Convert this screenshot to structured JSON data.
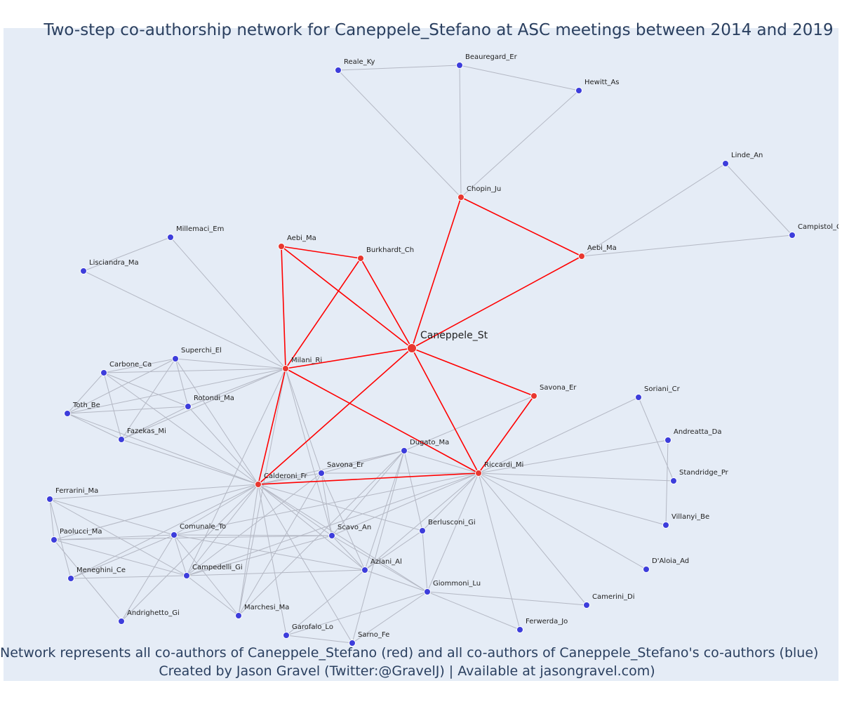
{
  "title": "Two-step co-authorship network for Caneppele_Stefano at ASC meetings between 2014 and 2019",
  "footer": {
    "line1": "Network represents all co-authors of Caneppele_Stefano (red) and all co-authors of Caneppele_Stefano's co-authors (blue)",
    "line2": "Created by Jason Gravel (Twitter:@GravelJ) | Available at jasongravel.com)"
  },
  "colors": {
    "background": "#e5ecf6",
    "red_node": "#e8372f",
    "blue_node": "#3d3ddb",
    "red_edge": "#ff0000",
    "grey_edge": "#b4b8c4",
    "text": "#2a3f5f"
  },
  "nodes": [
    {
      "id": "center",
      "label": "Caneppele_St",
      "group": "center"
    },
    {
      "id": "chopin",
      "label": "Chopin_Ju",
      "group": "red"
    },
    {
      "id": "aebi2",
      "label": "Aebi_Ma",
      "group": "red"
    },
    {
      "id": "aebi1",
      "label": "Aebi_Ma",
      "group": "red"
    },
    {
      "id": "burkhardt",
      "label": "Burkhardt_Ch",
      "group": "red"
    },
    {
      "id": "milani",
      "label": "Milani_Ri",
      "group": "red"
    },
    {
      "id": "savona_r",
      "label": "Savona_Er",
      "group": "red"
    },
    {
      "id": "calderoni",
      "label": "Calderoni_Fr",
      "group": "red"
    },
    {
      "id": "riccardi",
      "label": "Riccardi_Mi",
      "group": "red"
    },
    {
      "id": "reale",
      "label": "Reale_Ky",
      "group": "blue"
    },
    {
      "id": "beauregard",
      "label": "Beauregard_Er",
      "group": "blue"
    },
    {
      "id": "hewitt",
      "label": "Hewitt_As",
      "group": "blue"
    },
    {
      "id": "linde",
      "label": "Linde_An",
      "group": "blue"
    },
    {
      "id": "campistol",
      "label": "Campistol_Cl",
      "group": "blue"
    },
    {
      "id": "millemaci",
      "label": "Millemaci_Em",
      "group": "blue"
    },
    {
      "id": "lisciandra",
      "label": "Lisciandra_Ma",
      "group": "blue"
    },
    {
      "id": "superchi",
      "label": "Superchi_El",
      "group": "blue"
    },
    {
      "id": "carbone",
      "label": "Carbone_Ca",
      "group": "blue"
    },
    {
      "id": "rotondi",
      "label": "Rotondi_Ma",
      "group": "blue"
    },
    {
      "id": "toth",
      "label": "Toth_Be",
      "group": "blue"
    },
    {
      "id": "fazekas",
      "label": "Fazekas_Mi",
      "group": "blue"
    },
    {
      "id": "soriani",
      "label": "Soriani_Cr",
      "group": "blue"
    },
    {
      "id": "andreatta",
      "label": "Andreatta_Da",
      "group": "blue"
    },
    {
      "id": "dugato",
      "label": "Dugato_Ma",
      "group": "blue"
    },
    {
      "id": "savona_b",
      "label": "Savona_Er",
      "group": "blue"
    },
    {
      "id": "standridge",
      "label": "Standridge_Pr",
      "group": "blue"
    },
    {
      "id": "ferrarini",
      "label": "Ferrarini_Ma",
      "group": "blue"
    },
    {
      "id": "villanyi",
      "label": "Villanyi_Be",
      "group": "blue"
    },
    {
      "id": "comunale",
      "label": "Comunale_To",
      "group": "blue"
    },
    {
      "id": "scavo",
      "label": "Scavo_An",
      "group": "blue"
    },
    {
      "id": "berlusconi",
      "label": "Berlusconi_Gi",
      "group": "blue"
    },
    {
      "id": "paolucci",
      "label": "Paolucci_Ma",
      "group": "blue"
    },
    {
      "id": "daloia",
      "label": "D'Aloia_Ad",
      "group": "blue"
    },
    {
      "id": "aziani",
      "label": "Aziani_Al",
      "group": "blue"
    },
    {
      "id": "meneghini",
      "label": "Meneghini_Ce",
      "group": "blue"
    },
    {
      "id": "campedelli",
      "label": "Campedelli_Gi",
      "group": "blue"
    },
    {
      "id": "giommoni",
      "label": "Giommoni_Lu",
      "group": "blue"
    },
    {
      "id": "camerini",
      "label": "Camerini_Di",
      "group": "blue"
    },
    {
      "id": "marchesi",
      "label": "Marchesi_Ma",
      "group": "blue"
    },
    {
      "id": "andrighetto",
      "label": "Andrighetto_Gi",
      "group": "blue"
    },
    {
      "id": "ferwerda",
      "label": "Ferwerda_Jo",
      "group": "blue"
    },
    {
      "id": "garofalo",
      "label": "Garofalo_Lo",
      "group": "blue"
    },
    {
      "id": "sarno",
      "label": "Sarno_Fe",
      "group": "blue"
    }
  ],
  "edges": [
    [
      "center",
      "chopin",
      "red"
    ],
    [
      "center",
      "aebi2",
      "red"
    ],
    [
      "center",
      "aebi1",
      "red"
    ],
    [
      "center",
      "burkhardt",
      "red"
    ],
    [
      "center",
      "milani",
      "red"
    ],
    [
      "center",
      "savona_r",
      "red"
    ],
    [
      "center",
      "calderoni",
      "red"
    ],
    [
      "center",
      "riccardi",
      "red"
    ],
    [
      "chopin",
      "aebi2",
      "red"
    ],
    [
      "aebi1",
      "burkhardt",
      "red"
    ],
    [
      "aebi1",
      "milani",
      "red"
    ],
    [
      "burkhardt",
      "milani",
      "red"
    ],
    [
      "milani",
      "calderoni",
      "red"
    ],
    [
      "milani",
      "riccardi",
      "red"
    ],
    [
      "calderoni",
      "riccardi",
      "red"
    ],
    [
      "savona_r",
      "riccardi",
      "red"
    ],
    [
      "reale",
      "beauregard",
      "grey"
    ],
    [
      "reale",
      "chopin",
      "grey"
    ],
    [
      "beauregard",
      "hewitt",
      "grey"
    ],
    [
      "beauregard",
      "chopin",
      "grey"
    ],
    [
      "hewitt",
      "chopin",
      "grey"
    ],
    [
      "linde",
      "aebi2",
      "grey"
    ],
    [
      "linde",
      "campistol",
      "grey"
    ],
    [
      "campistol",
      "aebi2",
      "grey"
    ],
    [
      "millemaci",
      "lisciandra",
      "grey"
    ],
    [
      "millemaci",
      "milani",
      "grey"
    ],
    [
      "lisciandra",
      "milani",
      "grey"
    ],
    [
      "milani",
      "superchi",
      "grey"
    ],
    [
      "milani",
      "carbone",
      "grey"
    ],
    [
      "milani",
      "rotondi",
      "grey"
    ],
    [
      "milani",
      "toth",
      "grey"
    ],
    [
      "milani",
      "fazekas",
      "grey"
    ],
    [
      "milani",
      "savona_b",
      "grey"
    ],
    [
      "milani",
      "scavo",
      "grey"
    ],
    [
      "milani",
      "marchesi",
      "grey"
    ],
    [
      "milani",
      "campedelli",
      "grey"
    ],
    [
      "superchi",
      "carbone",
      "grey"
    ],
    [
      "superchi",
      "rotondi",
      "grey"
    ],
    [
      "superchi",
      "toth",
      "grey"
    ],
    [
      "superchi",
      "fazekas",
      "grey"
    ],
    [
      "superchi",
      "calderoni",
      "grey"
    ],
    [
      "carbone",
      "toth",
      "grey"
    ],
    [
      "carbone",
      "rotondi",
      "grey"
    ],
    [
      "carbone",
      "fazekas",
      "grey"
    ],
    [
      "carbone",
      "calderoni",
      "grey"
    ],
    [
      "toth",
      "rotondi",
      "grey"
    ],
    [
      "toth",
      "fazekas",
      "grey"
    ],
    [
      "toth",
      "calderoni",
      "grey"
    ],
    [
      "rotondi",
      "fazekas",
      "grey"
    ],
    [
      "rotondi",
      "calderoni",
      "grey"
    ],
    [
      "fazekas",
      "calderoni",
      "grey"
    ],
    [
      "savona_r",
      "dugato",
      "grey"
    ],
    [
      "riccardi",
      "soriani",
      "grey"
    ],
    [
      "riccardi",
      "andreatta",
      "grey"
    ],
    [
      "riccardi",
      "standridge",
      "grey"
    ],
    [
      "riccardi",
      "villanyi",
      "grey"
    ],
    [
      "riccardi",
      "daloia",
      "grey"
    ],
    [
      "riccardi",
      "camerini",
      "grey"
    ],
    [
      "riccardi",
      "ferwerda",
      "grey"
    ],
    [
      "riccardi",
      "giommoni",
      "grey"
    ],
    [
      "riccardi",
      "aziani",
      "grey"
    ],
    [
      "riccardi",
      "berlusconi",
      "grey"
    ],
    [
      "riccardi",
      "scavo",
      "grey"
    ],
    [
      "riccardi",
      "savona_b",
      "grey"
    ],
    [
      "riccardi",
      "dugato",
      "grey"
    ],
    [
      "riccardi",
      "campedelli",
      "grey"
    ],
    [
      "riccardi",
      "comunale",
      "grey"
    ],
    [
      "soriani",
      "standridge",
      "grey"
    ],
    [
      "andreatta",
      "villanyi",
      "grey"
    ],
    [
      "calderoni",
      "ferrarini",
      "grey"
    ],
    [
      "calderoni",
      "paolucci",
      "grey"
    ],
    [
      "calderoni",
      "comunale",
      "grey"
    ],
    [
      "calderoni",
      "campedelli",
      "grey"
    ],
    [
      "calderoni",
      "meneghini",
      "grey"
    ],
    [
      "calderoni",
      "andrighetto",
      "grey"
    ],
    [
      "calderoni",
      "marchesi",
      "grey"
    ],
    [
      "calderoni",
      "garofalo",
      "grey"
    ],
    [
      "calderoni",
      "sarno",
      "grey"
    ],
    [
      "calderoni",
      "aziani",
      "grey"
    ],
    [
      "calderoni",
      "scavo",
      "grey"
    ],
    [
      "calderoni",
      "savona_b",
      "grey"
    ],
    [
      "calderoni",
      "dugato",
      "grey"
    ],
    [
      "calderoni",
      "berlusconi",
      "grey"
    ],
    [
      "calderoni",
      "giommoni",
      "grey"
    ],
    [
      "ferrarini",
      "paolucci",
      "grey"
    ],
    [
      "ferrarini",
      "comunale",
      "grey"
    ],
    [
      "ferrarini",
      "campedelli",
      "grey"
    ],
    [
      "ferrarini",
      "meneghini",
      "grey"
    ],
    [
      "paolucci",
      "comunale",
      "grey"
    ],
    [
      "paolucci",
      "campedelli",
      "grey"
    ],
    [
      "paolucci",
      "andrighetto",
      "grey"
    ],
    [
      "paolucci",
      "scavo",
      "grey"
    ],
    [
      "comunale",
      "campedelli",
      "grey"
    ],
    [
      "comunale",
      "meneghini",
      "grey"
    ],
    [
      "comunale",
      "andrighetto",
      "grey"
    ],
    [
      "comunale",
      "marchesi",
      "grey"
    ],
    [
      "comunale",
      "scavo",
      "grey"
    ],
    [
      "comunale",
      "aziani",
      "grey"
    ],
    [
      "campedelli",
      "meneghini",
      "grey"
    ],
    [
      "campedelli",
      "marchesi",
      "grey"
    ],
    [
      "campedelli",
      "aziani",
      "grey"
    ],
    [
      "campedelli",
      "scavo",
      "grey"
    ],
    [
      "campedelli",
      "savona_b",
      "grey"
    ],
    [
      "savona_b",
      "dugato",
      "grey"
    ],
    [
      "savona_b",
      "scavo",
      "grey"
    ],
    [
      "savona_b",
      "aziani",
      "grey"
    ],
    [
      "savona_b",
      "marchesi",
      "grey"
    ],
    [
      "dugato",
      "scavo",
      "grey"
    ],
    [
      "dugato",
      "aziani",
      "grey"
    ],
    [
      "dugato",
      "berlusconi",
      "grey"
    ],
    [
      "dugato",
      "sarno",
      "grey"
    ],
    [
      "scavo",
      "aziani",
      "grey"
    ],
    [
      "scavo",
      "giommoni",
      "grey"
    ],
    [
      "aziani",
      "garofalo",
      "grey"
    ],
    [
      "aziani",
      "giommoni",
      "grey"
    ],
    [
      "aziani",
      "berlusconi",
      "grey"
    ],
    [
      "giommoni",
      "sarno",
      "grey"
    ],
    [
      "giommoni",
      "garofalo",
      "grey"
    ],
    [
      "giommoni",
      "camerini",
      "grey"
    ],
    [
      "giommoni",
      "ferwerda",
      "grey"
    ],
    [
      "berlusconi",
      "giommoni",
      "grey"
    ],
    [
      "garofalo",
      "sarno",
      "grey"
    ],
    [
      "marchesi",
      "dugato",
      "grey"
    ]
  ]
}
